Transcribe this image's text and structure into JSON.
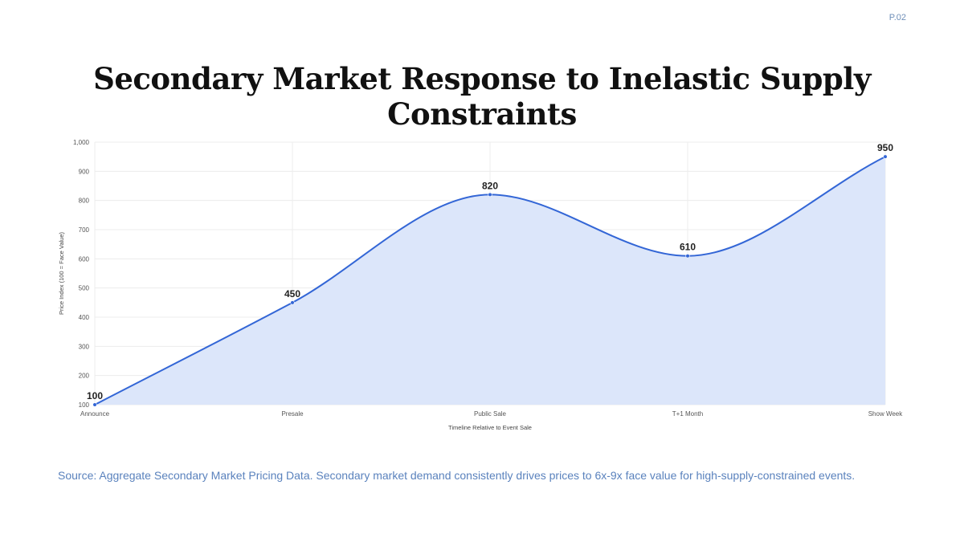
{
  "page": {
    "page_number": "P.02",
    "title": "Secondary Market Response to Inelastic Supply Constraints",
    "caption": "Source: Aggregate Secondary Market Pricing Data. Secondary market demand consistently drives prices to 6x-9x face value for high-supply-constrained events."
  },
  "colors": {
    "line": "#3366d6",
    "fill": "#dce6fa",
    "grid": "#ececec",
    "caption": "#5a82bd"
  },
  "chart_data": {
    "type": "area",
    "categories": [
      "Announce",
      "Presale",
      "Public Sale",
      "T+1 Month",
      "Show Week"
    ],
    "series": [
      {
        "values": [
          100,
          450,
          820,
          610,
          950
        ]
      }
    ],
    "data_labels": [
      "100",
      "450",
      "820",
      "610",
      "950"
    ],
    "xlabel": "Timeline Relative to Event Sale",
    "ylabel": "Price Index (100 = Face Value)",
    "ylim": [
      100,
      1000
    ],
    "yticks": [
      100,
      200,
      300,
      400,
      500,
      600,
      700,
      800,
      900,
      1000
    ],
    "ytick_labels": [
      "100",
      "200",
      "300",
      "400",
      "500",
      "600",
      "700",
      "800",
      "900",
      "1,000"
    ],
    "grid": true,
    "legend": "none"
  }
}
